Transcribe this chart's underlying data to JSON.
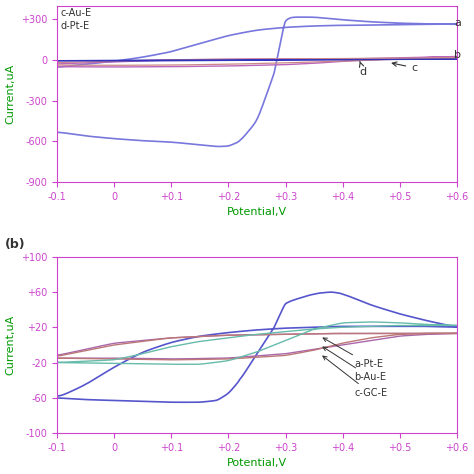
{
  "background_color": "#ffffff",
  "spine_color": "#cc44cc",
  "tick_color": "#cc44cc",
  "label_color_green": "#009900",
  "label_color_magenta": "#cc44cc",
  "ax1": {
    "xlabel": "Potential,V",
    "ylabel": "Current,uA",
    "xlim": [
      -0.1,
      0.6
    ],
    "ylim": [
      -900,
      400
    ],
    "yticks": [
      -900,
      -600,
      -300,
      0,
      300
    ],
    "ytick_labels": [
      "-900",
      "-600",
      "-300",
      "0",
      "+300"
    ],
    "xticks": [
      -0.1,
      0,
      0.1,
      0.2,
      0.3,
      0.4,
      0.5,
      0.6
    ],
    "xtick_labels": [
      "-0.1",
      "0",
      "+0.1",
      "+0.2",
      "+0.3",
      "+0.4",
      "+0.5",
      "+0.6"
    ],
    "annotation_text": "c-Au-E\nd-Pt-E",
    "curve_a_color": "#7777dd",
    "curve_b_color": "#bb66bb",
    "curve_c_color": "#cc8888",
    "curve_d_color": "#3333bb"
  },
  "ax2": {
    "xlabel": "Potential,V",
    "ylabel": "Current,uA",
    "xlim": [
      -0.1,
      0.6
    ],
    "ylim": [
      -100,
      100
    ],
    "yticks": [
      -100,
      -60,
      -20,
      20,
      60,
      100
    ],
    "ytick_labels": [
      "-100",
      "-60",
      "-20",
      "+20",
      "+60",
      "+100"
    ],
    "xticks": [
      -0.1,
      0,
      0.1,
      0.2,
      0.3,
      0.4,
      0.5,
      0.6
    ],
    "xtick_labels": [
      "-0.1",
      "0",
      "+0.1",
      "+0.2",
      "+0.3",
      "+0.4",
      "+0.5",
      "+0.6"
    ],
    "curve_gce_color": "#5555cc",
    "curve_a_color": "#aa66aa",
    "curve_b_color": "#bb7777",
    "curve_c_color": "#66bbaa"
  }
}
